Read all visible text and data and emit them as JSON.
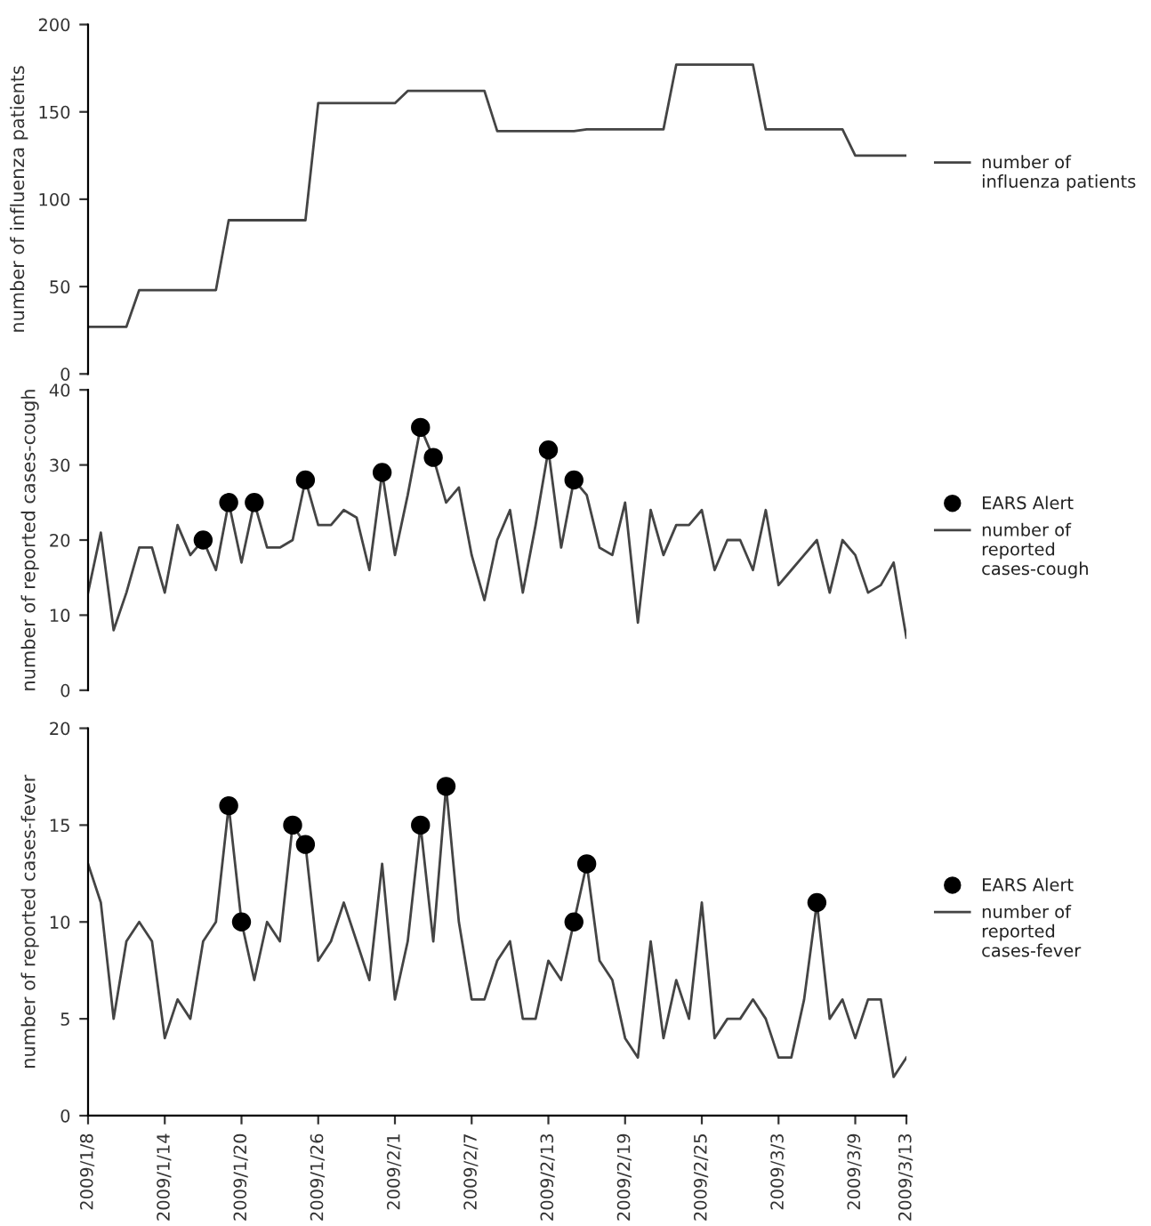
{
  "chart_data": [
    {
      "type": "line",
      "ylabel": "number of influenza patients",
      "xlim": [
        "2009-01-08",
        "2009-03-13"
      ],
      "ylim": [
        0,
        200
      ],
      "yticks": [
        0,
        50,
        100,
        150,
        200
      ],
      "tick_labels": "y",
      "grid": false,
      "legend": "right",
      "series": [
        {
          "name": "number of influenza patients",
          "color": "#444444",
          "x": [
            "2009-01-08",
            "2009-01-09",
            "2009-01-10",
            "2009-01-11",
            "2009-01-12",
            "2009-01-13",
            "2009-01-14",
            "2009-01-15",
            "2009-01-16",
            "2009-01-17",
            "2009-01-18",
            "2009-01-19",
            "2009-01-20",
            "2009-01-21",
            "2009-01-22",
            "2009-01-23",
            "2009-01-24",
            "2009-01-25",
            "2009-01-26",
            "2009-01-27",
            "2009-01-28",
            "2009-01-29",
            "2009-01-30",
            "2009-01-31",
            "2009-02-01",
            "2009-02-02",
            "2009-02-03",
            "2009-02-04",
            "2009-02-05",
            "2009-02-06",
            "2009-02-07",
            "2009-02-08",
            "2009-02-09",
            "2009-02-10",
            "2009-02-11",
            "2009-02-12",
            "2009-02-13",
            "2009-02-14",
            "2009-02-15",
            "2009-02-16",
            "2009-02-17",
            "2009-02-18",
            "2009-02-19",
            "2009-02-20",
            "2009-02-21",
            "2009-02-22",
            "2009-02-23",
            "2009-02-24",
            "2009-02-25",
            "2009-02-26",
            "2009-02-27",
            "2009-02-28",
            "2009-03-01",
            "2009-03-02",
            "2009-03-03",
            "2009-03-04",
            "2009-03-05",
            "2009-03-06",
            "2009-03-07",
            "2009-03-08",
            "2009-03-09",
            "2009-03-10",
            "2009-03-11",
            "2009-03-12",
            "2009-03-13"
          ],
          "values": [
            27,
            27,
            27,
            27,
            48,
            48,
            48,
            48,
            48,
            48,
            48,
            88,
            88,
            88,
            88,
            88,
            88,
            88,
            155,
            155,
            155,
            155,
            155,
            155,
            155,
            162,
            162,
            162,
            162,
            162,
            162,
            162,
            139,
            139,
            139,
            139,
            139,
            139,
            139,
            140,
            140,
            140,
            140,
            140,
            140,
            140,
            177,
            177,
            177,
            177,
            177,
            177,
            177,
            140,
            140,
            140,
            140,
            140,
            140,
            140,
            125,
            125,
            125,
            125,
            125
          ]
        }
      ]
    },
    {
      "type": "line",
      "ylabel": "number of reported cases-cough",
      "xlim": [
        "2009-01-08",
        "2009-03-13"
      ],
      "ylim": [
        0,
        40
      ],
      "yticks": [
        0,
        10,
        20,
        30,
        40
      ],
      "tick_labels": "y",
      "grid": false,
      "legend": "right",
      "series": [
        {
          "type": "scatter",
          "name": "EARS Alert",
          "color": "#000000",
          "marker": "circle",
          "x": [
            "2009-01-17",
            "2009-01-19",
            "2009-01-21",
            "2009-01-25",
            "2009-01-31",
            "2009-02-03",
            "2009-02-04",
            "2009-02-13",
            "2009-02-15"
          ],
          "values": [
            20,
            25,
            25,
            28,
            29,
            35,
            31,
            32,
            28
          ]
        },
        {
          "name": "number of reported cases-cough",
          "color": "#444444",
          "x": [
            "2009-01-08",
            "2009-01-09",
            "2009-01-10",
            "2009-01-11",
            "2009-01-12",
            "2009-01-13",
            "2009-01-14",
            "2009-01-15",
            "2009-01-16",
            "2009-01-17",
            "2009-01-18",
            "2009-01-19",
            "2009-01-20",
            "2009-01-21",
            "2009-01-22",
            "2009-01-23",
            "2009-01-24",
            "2009-01-25",
            "2009-01-26",
            "2009-01-27",
            "2009-01-28",
            "2009-01-29",
            "2009-01-30",
            "2009-01-31",
            "2009-02-01",
            "2009-02-02",
            "2009-02-03",
            "2009-02-04",
            "2009-02-05",
            "2009-02-06",
            "2009-02-07",
            "2009-02-08",
            "2009-02-09",
            "2009-02-10",
            "2009-02-11",
            "2009-02-12",
            "2009-02-13",
            "2009-02-14",
            "2009-02-15",
            "2009-02-16",
            "2009-02-17",
            "2009-02-18",
            "2009-02-19",
            "2009-02-20",
            "2009-02-21",
            "2009-02-22",
            "2009-02-23",
            "2009-02-24",
            "2009-02-25",
            "2009-02-26",
            "2009-02-27",
            "2009-02-28",
            "2009-03-01",
            "2009-03-02",
            "2009-03-03",
            "2009-03-04",
            "2009-03-05",
            "2009-03-06",
            "2009-03-07",
            "2009-03-08",
            "2009-03-09",
            "2009-03-10",
            "2009-03-11",
            "2009-03-12",
            "2009-03-13"
          ],
          "values": [
            13,
            21,
            8,
            13,
            19,
            19,
            13,
            22,
            18,
            20,
            16,
            25,
            17,
            25,
            19,
            19,
            20,
            28,
            22,
            22,
            24,
            23,
            16,
            29,
            18,
            26,
            35,
            31,
            25,
            27,
            18,
            12,
            20,
            24,
            13,
            22,
            32,
            19,
            28,
            26,
            19,
            18,
            25,
            9,
            24,
            18,
            22,
            22,
            24,
            16,
            20,
            20,
            16,
            24,
            14,
            16,
            18,
            20,
            13,
            20,
            18,
            13,
            14,
            17,
            7
          ]
        }
      ]
    },
    {
      "type": "line",
      "ylabel": "number of reported cases-fever",
      "xlim": [
        "2009-01-08",
        "2009-03-13"
      ],
      "ylim": [
        0,
        20
      ],
      "yticks": [
        0,
        5,
        10,
        15,
        20
      ],
      "grid": false,
      "legend": "right",
      "xticks": [
        {
          "value": "2009-01-08",
          "label": "2009/1/8"
        },
        {
          "value": "2009-01-14",
          "label": "2009/1/14"
        },
        {
          "value": "2009-01-20",
          "label": "2009/1/20"
        },
        {
          "value": "2009-01-26",
          "label": "2009/1/26"
        },
        {
          "value": "2009-02-01",
          "label": "2009/2/1"
        },
        {
          "value": "2009-02-07",
          "label": "2009/2/7"
        },
        {
          "value": "2009-02-13",
          "label": "2009/2/13"
        },
        {
          "value": "2009-02-19",
          "label": "2009/2/19"
        },
        {
          "value": "2009-02-25",
          "label": "2009/2/25"
        },
        {
          "value": "2009-03-03",
          "label": "2009/3/3"
        },
        {
          "value": "2009-03-09",
          "label": "2009/3/9"
        },
        {
          "value": "2009-03-13",
          "label": "2009/3/13"
        }
      ],
      "series": [
        {
          "type": "scatter",
          "name": "EARS Alert",
          "color": "#000000",
          "marker": "circle",
          "x": [
            "2009-01-19",
            "2009-01-20",
            "2009-01-24",
            "2009-01-25",
            "2009-02-03",
            "2009-02-05",
            "2009-02-15",
            "2009-02-16",
            "2009-03-06"
          ],
          "values": [
            16,
            10,
            15,
            14,
            15,
            17,
            10,
            13,
            11
          ]
        },
        {
          "name": "number of reported cases-fever",
          "color": "#444444",
          "x": [
            "2009-01-08",
            "2009-01-09",
            "2009-01-10",
            "2009-01-11",
            "2009-01-12",
            "2009-01-13",
            "2009-01-14",
            "2009-01-15",
            "2009-01-16",
            "2009-01-17",
            "2009-01-18",
            "2009-01-19",
            "2009-01-20",
            "2009-01-21",
            "2009-01-22",
            "2009-01-23",
            "2009-01-24",
            "2009-01-25",
            "2009-01-26",
            "2009-01-27",
            "2009-01-28",
            "2009-01-29",
            "2009-01-30",
            "2009-01-31",
            "2009-02-01",
            "2009-02-02",
            "2009-02-03",
            "2009-02-04",
            "2009-02-05",
            "2009-02-06",
            "2009-02-07",
            "2009-02-08",
            "2009-02-09",
            "2009-02-10",
            "2009-02-11",
            "2009-02-12",
            "2009-02-13",
            "2009-02-14",
            "2009-02-15",
            "2009-02-16",
            "2009-02-17",
            "2009-02-18",
            "2009-02-19",
            "2009-02-20",
            "2009-02-21",
            "2009-02-22",
            "2009-02-23",
            "2009-02-24",
            "2009-02-25",
            "2009-02-26",
            "2009-02-27",
            "2009-02-28",
            "2009-03-01",
            "2009-03-02",
            "2009-03-03",
            "2009-03-04",
            "2009-03-05",
            "2009-03-06",
            "2009-03-07",
            "2009-03-08",
            "2009-03-09",
            "2009-03-10",
            "2009-03-11",
            "2009-03-12",
            "2009-03-13"
          ],
          "values": [
            13,
            11,
            5,
            9,
            10,
            9,
            4,
            6,
            5,
            9,
            10,
            16,
            10,
            7,
            10,
            9,
            15,
            14,
            8,
            9,
            11,
            9,
            7,
            13,
            6,
            9,
            15,
            9,
            17,
            10,
            6,
            6,
            8,
            9,
            5,
            5,
            8,
            7,
            10,
            13,
            8,
            7,
            4,
            3,
            9,
            4,
            7,
            5,
            11,
            4,
            5,
            5,
            6,
            5,
            3,
            3,
            6,
            11,
            5,
            6,
            4,
            6,
            6,
            2,
            3
          ]
        }
      ]
    }
  ]
}
